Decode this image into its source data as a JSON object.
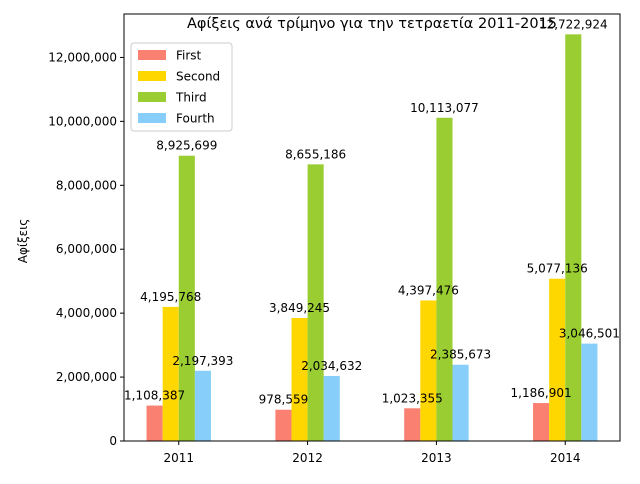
{
  "chart_data": {
    "type": "bar",
    "title": "Αφίξεις ανά τρίμηνο για την τετραετία 2011-2015",
    "xlabel": "",
    "ylabel": "Αφίξεις",
    "categories": [
      "2011",
      "2012",
      "2013",
      "2014"
    ],
    "ylim": [
      0,
      13359070
    ],
    "yticks": [
      0,
      2000000,
      4000000,
      6000000,
      8000000,
      10000000,
      12000000
    ],
    "ytick_labels": [
      "0",
      "2,000,000",
      "4,000,000",
      "6,000,000",
      "8,000,000",
      "10,000,000",
      "12,000,000"
    ],
    "grid": false,
    "legend_position": "top-left",
    "series": [
      {
        "name": "First",
        "color": "#fa8072",
        "values": [
          1108387,
          978559,
          1023355,
          1186901
        ],
        "labels": [
          "1,108,387",
          "978,559",
          "1,023,355",
          "1,186,901"
        ]
      },
      {
        "name": "Second",
        "color": "#ffd700",
        "values": [
          4195768,
          3849245,
          4397476,
          5077136
        ],
        "labels": [
          "4,195,768",
          "3,849,245",
          "4,397,476",
          "5,077,136"
        ]
      },
      {
        "name": "Third",
        "color": "#9acd32",
        "values": [
          8925699,
          8655186,
          10113077,
          12722924
        ],
        "labels": [
          "8,925,699",
          "8,655,186",
          "10,113,077",
          "12,722,924"
        ]
      },
      {
        "name": "Fourth",
        "color": "#87cefa",
        "values": [
          2197393,
          2034632,
          2385673,
          3046501
        ],
        "labels": [
          "2,197,393",
          "2,034,632",
          "2,385,673",
          "3,046,501"
        ]
      }
    ]
  }
}
